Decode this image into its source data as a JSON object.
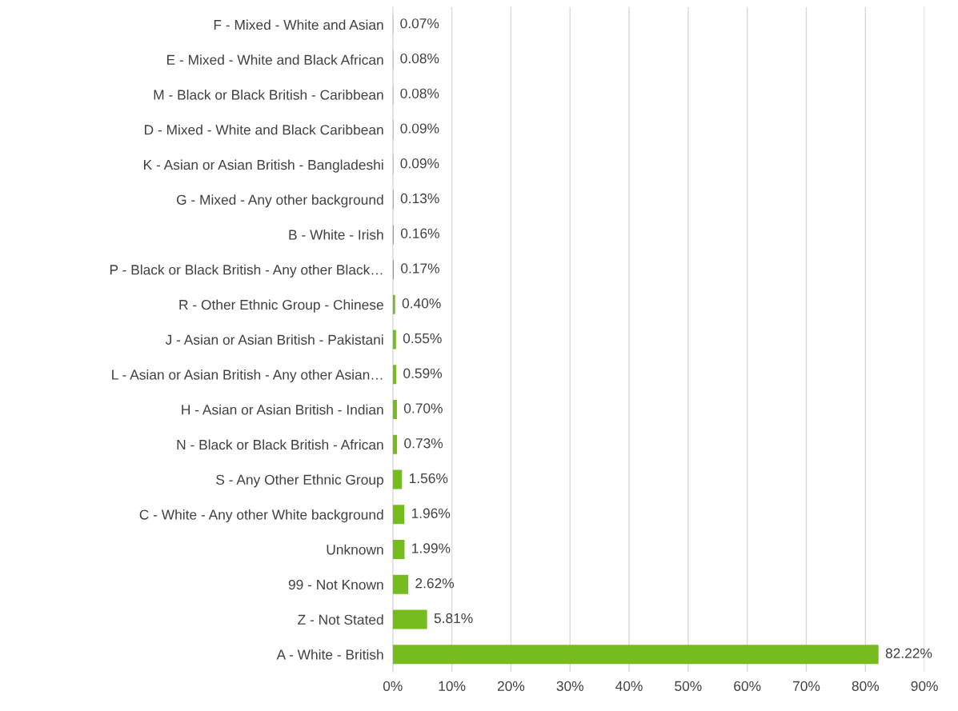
{
  "chart_data": {
    "type": "bar",
    "orientation": "horizontal",
    "categories": [
      "F - Mixed - White and Asian",
      "E - Mixed - White and Black African",
      "M - Black or Black British - Caribbean",
      "D - Mixed - White and Black Caribbean",
      "K - Asian or Asian British - Bangladeshi",
      "G - Mixed - Any other background",
      "B - White - Irish",
      "P - Black or Black British - Any other Black…",
      "R - Other Ethnic Group - Chinese",
      "J - Asian or Asian British - Pakistani",
      "L - Asian or Asian British - Any other Asian…",
      "H - Asian or Asian British - Indian",
      "N - Black or Black British - African",
      "S - Any Other Ethnic Group",
      "C - White - Any other White background",
      "Unknown",
      "99 - Not Known",
      "Z - Not Stated",
      "A - White - British"
    ],
    "values": [
      0.07,
      0.08,
      0.08,
      0.09,
      0.09,
      0.13,
      0.16,
      0.17,
      0.4,
      0.55,
      0.59,
      0.7,
      0.73,
      1.56,
      1.96,
      1.99,
      2.62,
      5.81,
      82.22
    ],
    "value_labels": [
      "0.07%",
      "0.08%",
      "0.08%",
      "0.09%",
      "0.09%",
      "0.13%",
      "0.16%",
      "0.17%",
      "0.40%",
      "0.55%",
      "0.59%",
      "0.70%",
      "0.73%",
      "1.56%",
      "1.96%",
      "1.99%",
      "2.62%",
      "5.81%",
      "82.22%"
    ],
    "color": "#77bc1f",
    "xlim": [
      0,
      90
    ],
    "xticks": [
      {
        "value": 0,
        "label": "0%"
      },
      {
        "value": 10,
        "label": "10%"
      },
      {
        "value": 20,
        "label": "20%"
      },
      {
        "value": 30,
        "label": "30%"
      },
      {
        "value": 40,
        "label": "40%"
      },
      {
        "value": 50,
        "label": "50%"
      },
      {
        "value": 60,
        "label": "60%"
      },
      {
        "value": 70,
        "label": "70%"
      },
      {
        "value": 80,
        "label": "80%"
      },
      {
        "value": 90,
        "label": "90%"
      }
    ],
    "grid": "x"
  }
}
